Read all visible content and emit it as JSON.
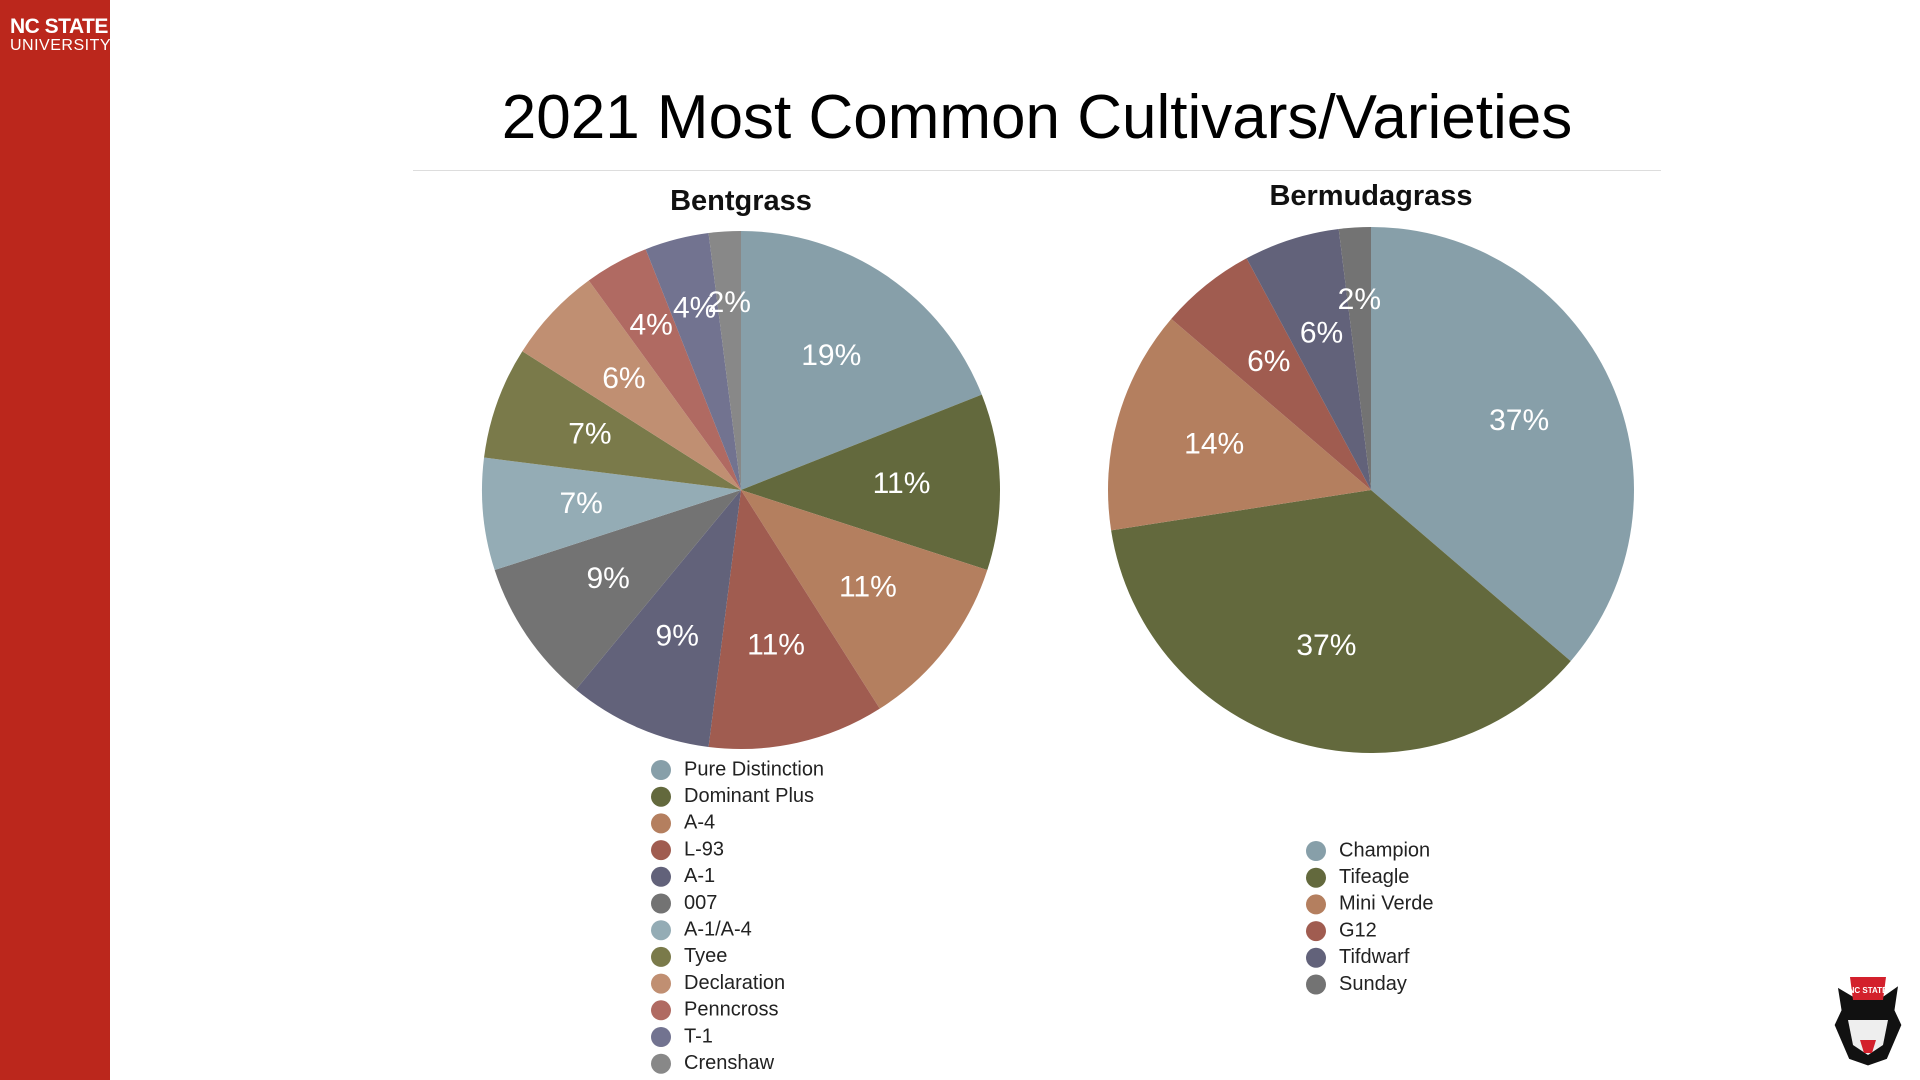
{
  "logo": {
    "line1": "NC STATE",
    "line2": "UNIVERSITY"
  },
  "title": "2021 Most Common Cultivars/Varieties",
  "chart_data": [
    {
      "type": "pie",
      "title": "Bentgrass",
      "legend_position": "bottom",
      "labels": [
        "Pure Distinction",
        "Dominant Plus",
        "A-4",
        "L-93",
        "A-1",
        "007",
        "A-1/A-4",
        "Tyee",
        "Declaration",
        "Penncross",
        "T-1",
        "Crenshaw"
      ],
      "values": [
        19,
        11,
        11,
        11,
        9,
        9,
        7,
        7,
        6,
        4,
        4,
        2
      ],
      "data_labels": [
        "19%",
        "11%",
        "11%",
        "11%",
        "9%",
        "9%",
        "7%",
        "7%",
        "6%",
        "4%",
        "4%",
        "2%"
      ],
      "colors": [
        "#879fa9",
        "#63693d",
        "#b47f5f",
        "#a05c50",
        "#62627a",
        "#737373",
        "#94acb5",
        "#7a7a4a",
        "#c08f72",
        "#b06a62",
        "#727390",
        "#888888"
      ]
    },
    {
      "type": "pie",
      "title": "Bermudagrass",
      "legend_position": "bottom",
      "labels": [
        "Champion",
        "Tifeagle",
        "Mini Verde",
        "G12",
        "Tifdwarf",
        "Sunday"
      ],
      "values": [
        37,
        37,
        14,
        6,
        6,
        2
      ],
      "data_labels": [
        "37%",
        "37%",
        "14%",
        "6%",
        "6%",
        "2%"
      ],
      "colors": [
        "#879fa9",
        "#63693d",
        "#b47f5f",
        "#a05c50",
        "#62627a",
        "#737373"
      ]
    }
  ]
}
